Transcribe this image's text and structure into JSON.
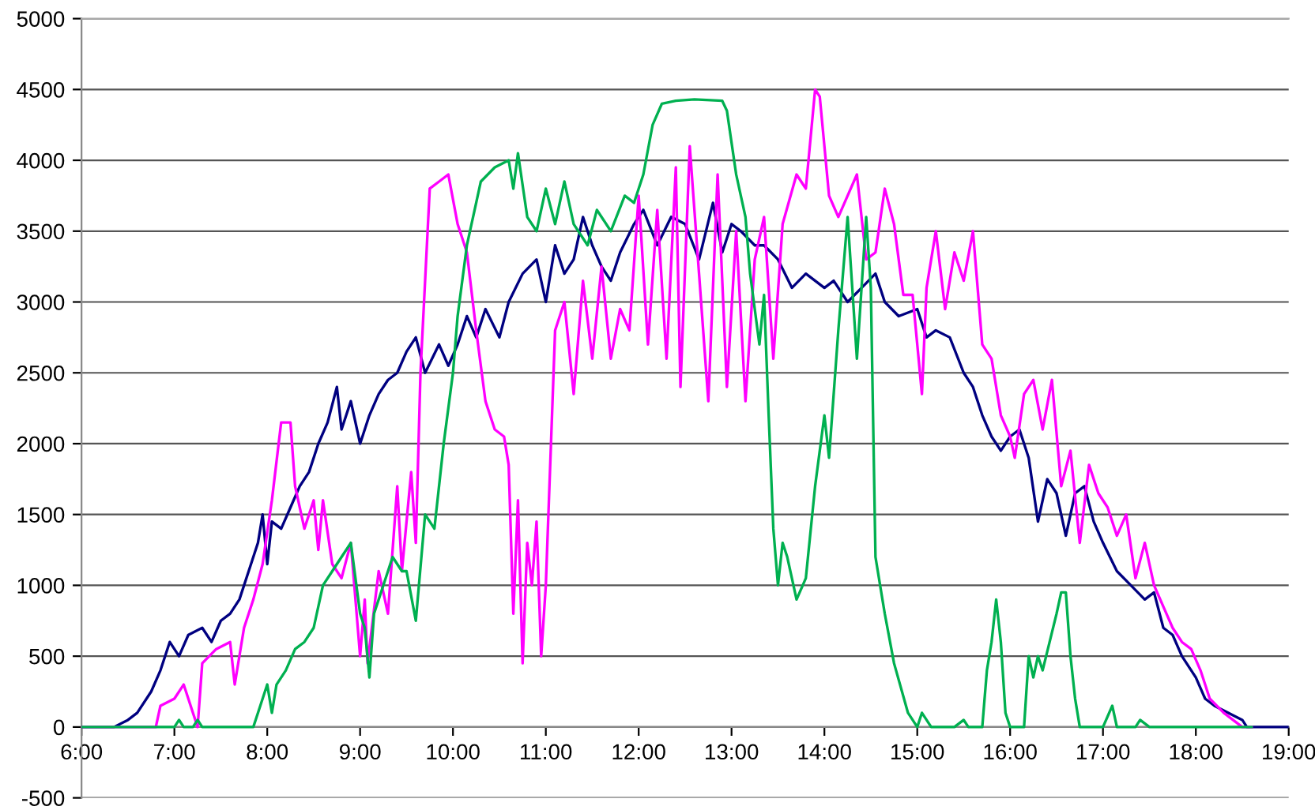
{
  "chart_data": {
    "type": "line",
    "grid": "y",
    "legend": false,
    "marker": "none",
    "line_style": "solid",
    "xlim": [
      6,
      19
    ],
    "ylim": [
      -500,
      5000
    ],
    "xticks": [
      {
        "value": 6,
        "label": "6:00"
      },
      {
        "value": 7,
        "label": "7:00"
      },
      {
        "value": 8,
        "label": "8:00"
      },
      {
        "value": 9,
        "label": "9:00"
      },
      {
        "value": 10,
        "label": "10:00"
      },
      {
        "value": 11,
        "label": "11:00"
      },
      {
        "value": 12,
        "label": "12:00"
      },
      {
        "value": 13,
        "label": "13:00"
      },
      {
        "value": 14,
        "label": "14:00"
      },
      {
        "value": 15,
        "label": "15:00"
      },
      {
        "value": 16,
        "label": "16:00"
      },
      {
        "value": 17,
        "label": "17:00"
      },
      {
        "value": 18,
        "label": "18:00"
      },
      {
        "value": 19,
        "label": "19:00"
      }
    ],
    "yticks": [
      -500,
      0,
      500,
      1000,
      1500,
      2000,
      2500,
      3000,
      3500,
      4000,
      4500,
      5000
    ],
    "series": [
      {
        "color": "#000080",
        "x": [
          6.0,
          6.35,
          6.5,
          6.6,
          6.75,
          6.85,
          6.95,
          7.05,
          7.15,
          7.3,
          7.4,
          7.5,
          7.6,
          7.7,
          7.8,
          7.9,
          7.95,
          8.0,
          8.05,
          8.15,
          8.25,
          8.35,
          8.45,
          8.55,
          8.65,
          8.75,
          8.8,
          8.9,
          9.0,
          9.1,
          9.2,
          9.3,
          9.4,
          9.5,
          9.6,
          9.7,
          9.85,
          9.95,
          10.05,
          10.15,
          10.25,
          10.35,
          10.5,
          10.6,
          10.75,
          10.9,
          11.0,
          11.1,
          11.2,
          11.3,
          11.4,
          11.5,
          11.6,
          11.7,
          11.8,
          11.95,
          12.05,
          12.2,
          12.35,
          12.5,
          12.65,
          12.8,
          12.9,
          13.0,
          13.1,
          13.25,
          13.35,
          13.5,
          13.65,
          13.8,
          14.0,
          14.1,
          14.25,
          14.4,
          14.55,
          14.65,
          14.8,
          15.0,
          15.1,
          15.2,
          15.35,
          15.5,
          15.6,
          15.7,
          15.8,
          15.9,
          16.0,
          16.1,
          16.2,
          16.3,
          16.4,
          16.5,
          16.6,
          16.7,
          16.8,
          16.9,
          17.0,
          17.15,
          17.3,
          17.45,
          17.55,
          17.65,
          17.75,
          17.85,
          18.0,
          18.1,
          18.2,
          18.35,
          18.5,
          18.55,
          19.0
        ],
        "values": [
          0,
          0,
          50,
          100,
          250,
          400,
          600,
          500,
          650,
          700,
          600,
          750,
          800,
          900,
          1100,
          1300,
          1500,
          1150,
          1450,
          1400,
          1550,
          1700,
          1800,
          2000,
          2150,
          2400,
          2100,
          2300,
          2000,
          2200,
          2350,
          2450,
          2500,
          2650,
          2750,
          2500,
          2700,
          2550,
          2700,
          2900,
          2750,
          2950,
          2750,
          3000,
          3200,
          3300,
          3000,
          3400,
          3200,
          3300,
          3600,
          3400,
          3250,
          3150,
          3350,
          3550,
          3650,
          3400,
          3600,
          3550,
          3300,
          3700,
          3350,
          3550,
          3500,
          3400,
          3400,
          3300,
          3100,
          3200,
          3100,
          3150,
          3000,
          3100,
          3200,
          3000,
          2900,
          2950,
          2750,
          2800,
          2750,
          2500,
          2400,
          2200,
          2050,
          1950,
          2050,
          2100,
          1900,
          1450,
          1750,
          1650,
          1350,
          1650,
          1700,
          1450,
          1300,
          1100,
          1000,
          900,
          950,
          700,
          650,
          500,
          350,
          200,
          150,
          100,
          50,
          0,
          0
        ]
      },
      {
        "color": "#ff00ff",
        "x": [
          6.0,
          6.8,
          6.85,
          7.0,
          7.1,
          7.2,
          7.25,
          7.3,
          7.45,
          7.6,
          7.65,
          7.75,
          7.85,
          7.95,
          8.05,
          8.15,
          8.25,
          8.3,
          8.4,
          8.5,
          8.55,
          8.6,
          8.7,
          8.8,
          8.9,
          9.0,
          9.05,
          9.08,
          9.2,
          9.3,
          9.4,
          9.45,
          9.55,
          9.6,
          9.65,
          9.75,
          9.85,
          9.95,
          10.05,
          10.15,
          10.25,
          10.35,
          10.45,
          10.55,
          10.6,
          10.65,
          10.7,
          10.75,
          10.8,
          10.85,
          10.9,
          10.95,
          11.0,
          11.1,
          11.2,
          11.3,
          11.4,
          11.5,
          11.6,
          11.7,
          11.8,
          11.9,
          12.0,
          12.1,
          12.2,
          12.3,
          12.4,
          12.45,
          12.55,
          12.65,
          12.75,
          12.85,
          12.95,
          13.05,
          13.15,
          13.25,
          13.35,
          13.45,
          13.55,
          13.7,
          13.8,
          13.9,
          13.95,
          14.05,
          14.15,
          14.25,
          14.35,
          14.45,
          14.55,
          14.65,
          14.75,
          14.85,
          14.95,
          15.05,
          15.1,
          15.2,
          15.3,
          15.4,
          15.5,
          15.6,
          15.7,
          15.8,
          15.9,
          16.0,
          16.05,
          16.15,
          16.25,
          16.35,
          16.45,
          16.55,
          16.65,
          16.75,
          16.85,
          16.95,
          17.05,
          17.15,
          17.25,
          17.35,
          17.45,
          17.55,
          17.65,
          17.75,
          17.85,
          17.95,
          18.05,
          18.15,
          18.3,
          18.4,
          18.5,
          18.6
        ],
        "values": [
          0,
          0,
          150,
          200,
          300,
          100,
          0,
          450,
          550,
          600,
          300,
          700,
          900,
          1150,
          1600,
          2150,
          2150,
          1700,
          1400,
          1600,
          1250,
          1600,
          1150,
          1050,
          1300,
          500,
          900,
          450,
          1100,
          800,
          1700,
          1100,
          1800,
          1300,
          2500,
          3800,
          3850,
          3900,
          3550,
          3350,
          2800,
          2300,
          2100,
          2050,
          1850,
          800,
          1600,
          450,
          1300,
          1000,
          1450,
          500,
          1000,
          2800,
          3000,
          2350,
          3150,
          2600,
          3250,
          2600,
          2950,
          2800,
          3750,
          2700,
          3650,
          2600,
          3950,
          2400,
          4100,
          3200,
          2300,
          3900,
          2400,
          3500,
          2300,
          3300,
          3600,
          2600,
          3550,
          3900,
          3800,
          4500,
          4450,
          3750,
          3600,
          3750,
          3900,
          3300,
          3350,
          3800,
          3550,
          3050,
          3050,
          2350,
          3100,
          3500,
          2950,
          3350,
          3150,
          3500,
          2700,
          2600,
          2200,
          2050,
          1900,
          2350,
          2450,
          2100,
          2450,
          1700,
          1950,
          1300,
          1850,
          1650,
          1550,
          1350,
          1500,
          1050,
          1300,
          1000,
          850,
          700,
          600,
          550,
          400,
          200,
          100,
          50,
          0,
          0
        ]
      },
      {
        "color": "#00b050",
        "x": [
          6.0,
          7.0,
          7.05,
          7.1,
          7.2,
          7.25,
          7.3,
          7.85,
          7.9,
          8.0,
          8.05,
          8.1,
          8.2,
          8.3,
          8.4,
          8.5,
          8.6,
          8.7,
          8.8,
          8.9,
          9.0,
          9.05,
          9.1,
          9.15,
          9.25,
          9.35,
          9.45,
          9.5,
          9.6,
          9.7,
          9.8,
          9.9,
          10.0,
          10.05,
          10.15,
          10.3,
          10.45,
          10.6,
          10.65,
          10.7,
          10.8,
          10.9,
          11.0,
          11.1,
          11.2,
          11.3,
          11.45,
          11.55,
          11.7,
          11.85,
          11.95,
          12.05,
          12.15,
          12.25,
          12.4,
          12.6,
          12.9,
          12.95,
          13.05,
          13.15,
          13.2,
          13.3,
          13.35,
          13.4,
          13.45,
          13.5,
          13.55,
          13.6,
          13.7,
          13.8,
          13.9,
          14.0,
          14.05,
          14.15,
          14.25,
          14.35,
          14.45,
          14.5,
          14.55,
          14.65,
          14.75,
          14.9,
          15.0,
          15.05,
          15.15,
          15.4,
          15.5,
          15.55,
          15.7,
          15.75,
          15.8,
          15.85,
          15.9,
          15.95,
          16.0,
          16.15,
          16.2,
          16.25,
          16.3,
          16.35,
          16.5,
          16.55,
          16.6,
          16.65,
          16.7,
          16.75,
          17.0,
          17.1,
          17.15,
          17.35,
          17.4,
          17.5,
          18.6
        ],
        "values": [
          0,
          0,
          50,
          0,
          0,
          50,
          0,
          0,
          100,
          300,
          100,
          300,
          400,
          550,
          600,
          700,
          1000,
          1100,
          1200,
          1300,
          800,
          700,
          350,
          800,
          1000,
          1200,
          1100,
          1100,
          750,
          1500,
          1400,
          2000,
          2500,
          2900,
          3400,
          3850,
          3950,
          4000,
          3800,
          4050,
          3600,
          3500,
          3800,
          3550,
          3850,
          3550,
          3400,
          3650,
          3500,
          3750,
          3700,
          3900,
          4250,
          4400,
          4420,
          4430,
          4420,
          4350,
          3900,
          3600,
          3200,
          2700,
          3050,
          2200,
          1400,
          1000,
          1300,
          1200,
          900,
          1050,
          1700,
          2200,
          1900,
          2800,
          3600,
          2600,
          3600,
          3100,
          1200,
          800,
          450,
          100,
          0,
          100,
          0,
          0,
          50,
          0,
          0,
          400,
          600,
          900,
          600,
          100,
          0,
          0,
          500,
          350,
          500,
          400,
          800,
          950,
          950,
          500,
          200,
          0,
          0,
          150,
          0,
          0,
          50,
          0,
          0
        ]
      }
    ]
  }
}
